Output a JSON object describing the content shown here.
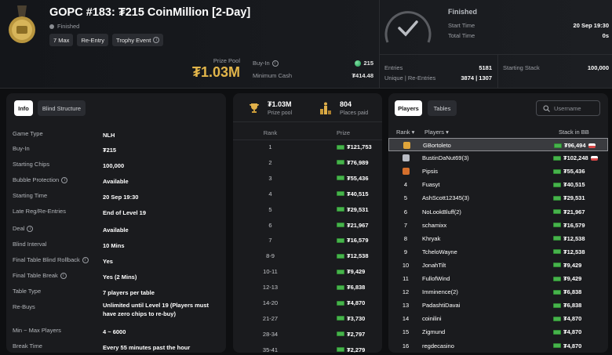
{
  "header": {
    "title": "GOPC #183: ₮215 CoinMillion [2-Day]",
    "status": "Finished",
    "tags": [
      "7 Max",
      "Re-Entry",
      "Trophy Event"
    ],
    "prize_pool_label": "Prize Pool",
    "prize_pool_value": "₮1.03M",
    "buyin_label": "Buy-In",
    "buyin_value": "215",
    "min_cash_label": "Minimum Cash",
    "min_cash_value": "₮414.48"
  },
  "summary": {
    "status_title": "Finished",
    "start_time_label": "Start Time",
    "start_time_value": "20 Sep 19:30",
    "total_time_label": "Total Time",
    "total_time_value": "0s",
    "entries_label": "Entries",
    "entries_value": "5181",
    "unique_label": "Unique | Re-Entries",
    "unique_value": "3874 | 1307",
    "starting_stack_label": "Starting Stack",
    "starting_stack_value": "100,000"
  },
  "info_panel": {
    "tabs": [
      "Info",
      "Blind Structure"
    ],
    "rows": [
      {
        "label": "Game Type",
        "value": "NLH"
      },
      {
        "label": "Buy-In",
        "value": "₮215"
      },
      {
        "label": "Starting Chips",
        "value": "100,000"
      },
      {
        "label": "Bubble Protection",
        "value": "Available"
      },
      {
        "label": "Starting Time",
        "value": "20 Sep 19:30"
      },
      {
        "label": "Late Reg/Re-Entries",
        "value": "End of Level 19"
      },
      {
        "label": "Deal",
        "value": "Available"
      },
      {
        "label": "Blind Interval",
        "value": "10 Mins"
      },
      {
        "label": "Final Table Blind Rollback",
        "value": "Yes"
      },
      {
        "label": "Final Table Break",
        "value": "Yes (2 Mins)"
      },
      {
        "label": "Table Type",
        "value": "7 players per table"
      },
      {
        "label": "Re-Buys",
        "value": "Unlimited until Level 19 (Players must have zero chips to re-buy)"
      },
      {
        "label": "Min ~ Max Players",
        "value": "4 ~ 6000"
      },
      {
        "label": "Break Time",
        "value": "Every 55 minutes past the hour"
      }
    ]
  },
  "prize_panel": {
    "prize_pool_value": "₮1.03M",
    "prize_pool_label": "Prize pool",
    "places_paid_value": "804",
    "places_paid_label": "Places paid",
    "col_rank": "Rank",
    "col_prize": "Prize",
    "rows": [
      {
        "rank": "1",
        "prize": "₮121,753"
      },
      {
        "rank": "2",
        "prize": "₮76,989"
      },
      {
        "rank": "3",
        "prize": "₮55,436"
      },
      {
        "rank": "4",
        "prize": "₮40,515"
      },
      {
        "rank": "5",
        "prize": "₮29,531"
      },
      {
        "rank": "6",
        "prize": "₮21,967"
      },
      {
        "rank": "7",
        "prize": "₮16,579"
      },
      {
        "rank": "8-9",
        "prize": "₮12,538"
      },
      {
        "rank": "10-11",
        "prize": "₮9,429"
      },
      {
        "rank": "12-13",
        "prize": "₮6,838"
      },
      {
        "rank": "14-20",
        "prize": "₮4,870"
      },
      {
        "rank": "21-27",
        "prize": "₮3,730"
      },
      {
        "rank": "28-34",
        "prize": "₮2,797"
      },
      {
        "rank": "35-41",
        "prize": "₮2,279"
      }
    ]
  },
  "players_panel": {
    "tabs": [
      "Players",
      "Tables"
    ],
    "search_placeholder": "Username",
    "col_rank": "Rank",
    "col_players": "Players",
    "col_stack": "Stack in BB",
    "rows": [
      {
        "rank": "1",
        "name": "GBortoleto",
        "stack": "₮96,494",
        "badge": "#e0a53a"
      },
      {
        "rank": "2",
        "name": "BustinDaNut69(3)",
        "stack": "₮102,248",
        "badge": "#b9bcc4"
      },
      {
        "rank": "3",
        "name": "Pipsis",
        "stack": "₮55,436",
        "badge": "#d46f2c"
      },
      {
        "rank": "4",
        "name": "Fuasyt",
        "stack": "₮40,515"
      },
      {
        "rank": "5",
        "name": "AshScott12345(3)",
        "stack": "₮29,531"
      },
      {
        "rank": "6",
        "name": "NoLookBluff(2)",
        "stack": "₮21,967"
      },
      {
        "rank": "7",
        "name": "schamixx",
        "stack": "₮16,579"
      },
      {
        "rank": "8",
        "name": "Khryak",
        "stack": "₮12,538"
      },
      {
        "rank": "9",
        "name": "TcheloWayne",
        "stack": "₮12,538"
      },
      {
        "rank": "10",
        "name": "JonahTilt",
        "stack": "₮9,429"
      },
      {
        "rank": "11",
        "name": "FullofWind",
        "stack": "₮9,429"
      },
      {
        "rank": "12",
        "name": "Imminence(2)",
        "stack": "₮6,838"
      },
      {
        "rank": "13",
        "name": "PadashtiDavai",
        "stack": "₮6,838"
      },
      {
        "rank": "14",
        "name": "coinilini",
        "stack": "₮4,870"
      },
      {
        "rank": "15",
        "name": "Zigmund",
        "stack": "₮4,870"
      },
      {
        "rank": "16",
        "name": "regdecasino",
        "stack": "₮4,870"
      }
    ]
  }
}
